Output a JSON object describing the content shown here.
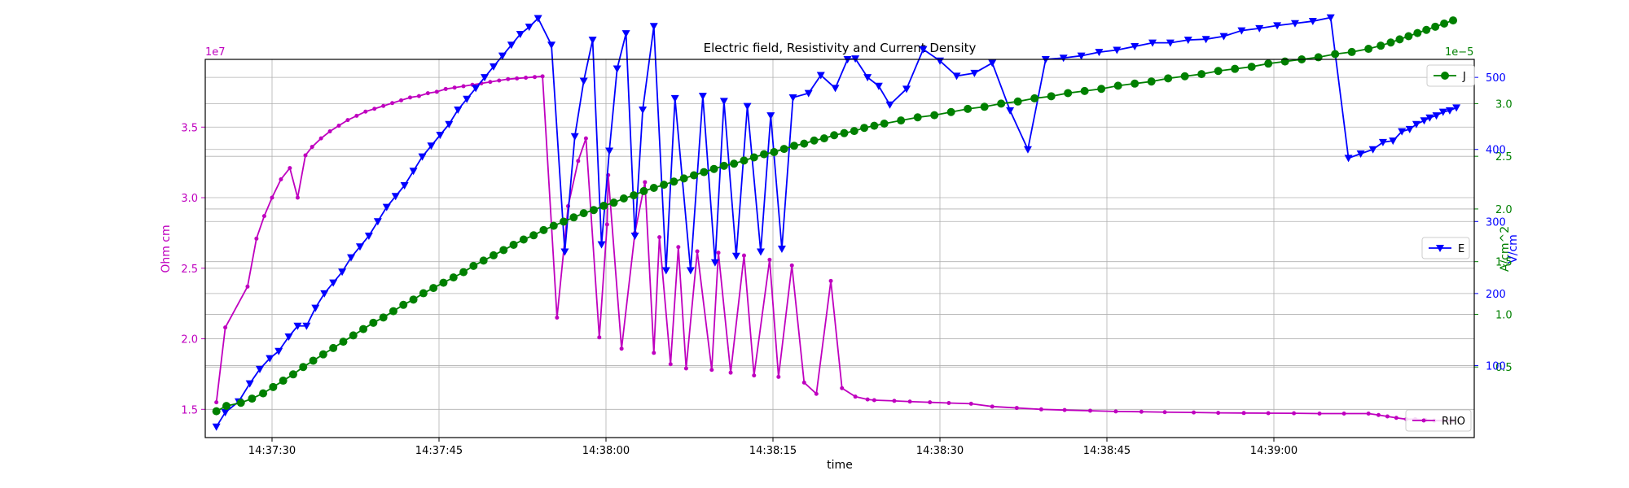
{
  "chart_data": {
    "type": "line",
    "title": "Electric field, Resistivity and Current Density",
    "xlabel": "time",
    "x_ticks": [
      "14:37:30",
      "14:37:45",
      "14:38:00",
      "14:38:15",
      "14:38:30",
      "14:38:45",
      "14:39:00"
    ],
    "x_tick_seconds": [
      30,
      45,
      60,
      75,
      90,
      105,
      120
    ],
    "xlim_seconds_after_14_37_00": [
      24,
      138
    ],
    "grid": true,
    "axes": {
      "rho": {
        "label": "Ohm cm",
        "color": "#bf00bf",
        "side": "left",
        "scale_note": "1e7",
        "ylim": [
          1.3,
          3.98
        ],
        "ticks": [
          1.5,
          2.0,
          2.5,
          3.0,
          3.5
        ],
        "tick_labels": [
          "1.5",
          "2.0",
          "2.5",
          "3.0",
          "3.5"
        ]
      },
      "j": {
        "label": "A/cm^2",
        "color": "#008000",
        "side": "right",
        "scale_note": "1e−5",
        "ylim": [
          -0.17,
          3.42
        ],
        "ticks": [
          0.5,
          1.0,
          1.5,
          2.0,
          2.5,
          3.0
        ],
        "tick_labels": [
          "0.5",
          "1.0",
          "1.5",
          "2.0",
          "2.5",
          "3.0"
        ]
      },
      "e": {
        "label": "V/cm",
        "color": "#0000ff",
        "side": "right",
        "ylim": [
          0,
          525
        ],
        "ticks": [
          100,
          200,
          300,
          400,
          500
        ],
        "tick_labels": [
          "100",
          "200",
          "300",
          "400",
          "500"
        ]
      }
    },
    "legends": [
      {
        "name": "J",
        "position": "top-right",
        "color": "#008000",
        "marker": "circle"
      },
      {
        "name": "E",
        "position": "center-right",
        "color": "#0000ff",
        "marker": "triangle-down"
      },
      {
        "name": "RHO",
        "position": "bottom-right",
        "color": "#bf00bf",
        "marker": "dot"
      }
    ],
    "series": [
      {
        "name": "RHO",
        "axis": "rho",
        "marker": "dot",
        "x": [
          25.0,
          25.8,
          27.8,
          28.6,
          29.3,
          30.0,
          30.8,
          31.6,
          32.3,
          33.0,
          33.6,
          34.4,
          35.2,
          36.0,
          36.8,
          37.6,
          38.4,
          39.2,
          40.0,
          40.8,
          41.6,
          42.4,
          43.2,
          44.0,
          44.8,
          45.6,
          46.4,
          47.2,
          48.0,
          48.8,
          49.6,
          50.4,
          51.2,
          52.0,
          52.8,
          53.6,
          54.3,
          55.6,
          56.6,
          57.5,
          58.2,
          59.4,
          60.1,
          60.2,
          61.4,
          62.6,
          63.5,
          64.3,
          64.8,
          65.8,
          66.5,
          67.2,
          68.2,
          69.5,
          70.1,
          71.2,
          72.4,
          73.3,
          74.7,
          75.5,
          76.7,
          77.8,
          78.9,
          80.2,
          81.2,
          82.4,
          83.5,
          84.1,
          85.9,
          87.3,
          89.1,
          90.8,
          92.8,
          94.7,
          96.9,
          99.1,
          101.2,
          103.5,
          105.8,
          108.1,
          110.2,
          112.8,
          115.0,
          117.3,
          119.5,
          121.8,
          124.1,
          126.3,
          128.5,
          129.4,
          130.2,
          131.0,
          131.9,
          132.7,
          133.6,
          134.4,
          135.2,
          136.0
        ],
        "values": [
          1.55,
          2.08,
          2.37,
          2.71,
          2.87,
          3.0,
          3.13,
          3.21,
          3.0,
          3.3,
          3.36,
          3.42,
          3.47,
          3.51,
          3.55,
          3.58,
          3.61,
          3.63,
          3.65,
          3.67,
          3.69,
          3.71,
          3.72,
          3.74,
          3.75,
          3.77,
          3.78,
          3.79,
          3.8,
          3.81,
          3.82,
          3.83,
          3.84,
          3.845,
          3.85,
          3.855,
          3.86,
          2.15,
          2.94,
          3.26,
          3.42,
          2.01,
          2.81,
          3.16,
          1.93,
          2.75,
          3.11,
          1.9,
          2.72,
          1.82,
          2.65,
          1.79,
          2.62,
          1.78,
          2.61,
          1.76,
          2.59,
          1.74,
          2.56,
          1.73,
          2.52,
          1.69,
          1.61,
          2.41,
          1.65,
          1.59,
          1.57,
          1.565,
          1.56,
          1.555,
          1.55,
          1.545,
          1.54,
          1.52,
          1.51,
          1.5,
          1.495,
          1.49,
          1.485,
          1.483,
          1.48,
          1.478,
          1.475,
          1.474,
          1.473,
          1.472,
          1.47,
          1.47,
          1.47,
          1.46,
          1.45,
          1.44,
          1.43,
          1.43,
          1.425,
          1.42,
          1.42,
          1.42
        ]
      },
      {
        "name": "E",
        "axis": "e",
        "marker": "triangle-down",
        "x": [
          25.0,
          25.8,
          27.0,
          28.0,
          28.9,
          29.8,
          30.6,
          31.5,
          32.3,
          33.1,
          33.9,
          34.7,
          35.5,
          36.3,
          37.1,
          37.9,
          38.7,
          39.5,
          40.3,
          41.1,
          41.9,
          42.7,
          43.5,
          44.3,
          45.1,
          45.9,
          46.7,
          47.5,
          48.3,
          49.1,
          49.9,
          50.7,
          51.5,
          52.3,
          53.1,
          53.9,
          55.1,
          56.3,
          57.2,
          58.0,
          58.8,
          59.6,
          60.3,
          61.0,
          61.8,
          62.6,
          63.3,
          64.3,
          65.4,
          66.2,
          67.6,
          68.7,
          69.8,
          70.6,
          71.7,
          72.7,
          73.9,
          74.8,
          75.8,
          76.8,
          78.2,
          79.3,
          80.6,
          81.7,
          82.4,
          83.5,
          84.5,
          85.5,
          87.0,
          88.5,
          90.0,
          91.5,
          93.1,
          94.7,
          96.3,
          97.9,
          99.5,
          101.1,
          102.7,
          104.3,
          105.9,
          107.5,
          109.1,
          110.7,
          112.3,
          113.9,
          115.5,
          117.1,
          118.7,
          120.3,
          121.9,
          123.5,
          125.1,
          126.7,
          127.8,
          128.9,
          129.8,
          130.7,
          131.5,
          132.2,
          132.8,
          133.5,
          134.0,
          134.6,
          135.2,
          135.8,
          136.4
        ],
        "values": [
          15,
          35,
          50,
          75,
          95,
          110,
          120,
          140,
          155,
          155,
          180,
          200,
          215,
          230,
          250,
          265,
          280,
          300,
          320,
          335,
          350,
          370,
          390,
          405,
          420,
          435,
          455,
          470,
          485,
          500,
          515,
          530,
          545,
          560,
          570,
          582,
          545,
          258,
          418,
          495,
          552,
          268,
          398,
          512,
          561,
          280,
          455,
          571,
          232,
          471,
          232,
          474,
          243,
          467,
          252,
          460,
          258,
          447,
          262,
          472,
          478,
          503,
          485,
          525,
          526,
          500,
          488,
          462,
          484,
          539,
          523,
          502,
          506,
          520,
          454,
          400,
          525,
          527,
          530,
          535,
          538,
          543,
          548,
          548,
          552,
          553,
          557,
          565,
          568,
          572,
          575,
          578,
          583,
          388,
          394,
          400,
          410,
          412,
          425,
          428,
          435,
          440,
          444,
          447,
          452,
          454,
          458
        ]
      },
      {
        "name": "J",
        "axis": "j",
        "marker": "circle",
        "x": [
          25.0,
          25.9,
          27.2,
          28.2,
          29.2,
          30.1,
          31.0,
          31.9,
          32.8,
          33.7,
          34.6,
          35.5,
          36.4,
          37.3,
          38.2,
          39.1,
          40.0,
          40.9,
          41.8,
          42.7,
          43.6,
          44.5,
          45.4,
          46.3,
          47.2,
          48.1,
          49.0,
          49.9,
          50.8,
          51.7,
          52.6,
          53.5,
          54.4,
          55.3,
          56.2,
          57.1,
          58.0,
          58.9,
          59.8,
          60.7,
          61.6,
          62.5,
          63.4,
          64.3,
          65.2,
          66.1,
          67.0,
          67.9,
          68.8,
          69.7,
          70.6,
          71.5,
          72.4,
          73.3,
          74.2,
          75.1,
          76.0,
          76.9,
          77.8,
          78.7,
          79.6,
          80.5,
          81.4,
          82.3,
          83.2,
          84.1,
          85.0,
          86.5,
          88.0,
          89.5,
          91.0,
          92.5,
          94.0,
          95.5,
          97.0,
          98.5,
          100.0,
          101.5,
          103.0,
          104.5,
          106.0,
          107.5,
          109.0,
          110.5,
          112.0,
          113.5,
          115.0,
          116.5,
          118.0,
          119.5,
          121.0,
          122.5,
          124.0,
          125.5,
          127.0,
          128.5,
          129.6,
          130.5,
          131.3,
          132.1,
          132.9,
          133.7,
          134.5,
          135.3,
          136.1
        ],
        "values": [
          0.08,
          0.13,
          0.16,
          0.2,
          0.25,
          0.31,
          0.37,
          0.43,
          0.5,
          0.56,
          0.62,
          0.68,
          0.74,
          0.8,
          0.86,
          0.92,
          0.97,
          1.03,
          1.09,
          1.14,
          1.2,
          1.25,
          1.3,
          1.35,
          1.4,
          1.46,
          1.51,
          1.56,
          1.61,
          1.66,
          1.71,
          1.75,
          1.8,
          1.84,
          1.88,
          1.92,
          1.96,
          1.99,
          2.03,
          2.06,
          2.1,
          2.13,
          2.17,
          2.2,
          2.23,
          2.26,
          2.29,
          2.32,
          2.35,
          2.38,
          2.41,
          2.43,
          2.46,
          2.49,
          2.52,
          2.54,
          2.57,
          2.6,
          2.62,
          2.65,
          2.67,
          2.7,
          2.72,
          2.74,
          2.77,
          2.79,
          2.81,
          2.84,
          2.87,
          2.89,
          2.92,
          2.95,
          2.97,
          3.0,
          3.02,
          3.05,
          3.07,
          3.1,
          3.12,
          3.14,
          3.17,
          3.19,
          3.21,
          3.24,
          3.26,
          3.28,
          3.31,
          3.33,
          3.35,
          3.38,
          3.4,
          3.42,
          3.44,
          3.47,
          3.49,
          3.52,
          3.55,
          3.58,
          3.61,
          3.64,
          3.67,
          3.7,
          3.73,
          3.76,
          3.79
        ]
      }
    ]
  }
}
